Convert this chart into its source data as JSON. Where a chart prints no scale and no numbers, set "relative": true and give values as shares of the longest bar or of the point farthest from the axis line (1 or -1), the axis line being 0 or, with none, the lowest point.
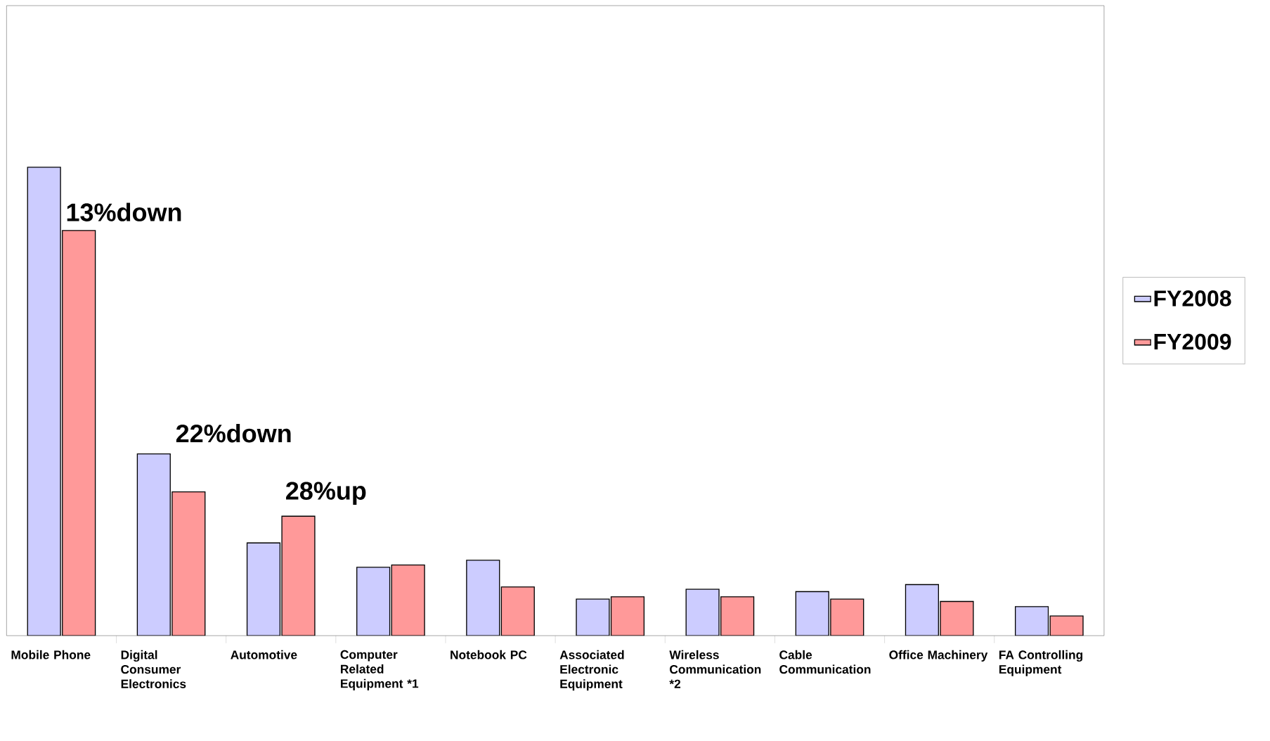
{
  "chart_data": {
    "type": "bar",
    "relative": true,
    "categories": [
      "Mobile Phone",
      "Digital Consumer Electronics",
      "Automotive",
      "Computer Related Equipment *1",
      "Notebook PC",
      "Associated Electronic Equipment",
      "Wireless Communication *2",
      "Cable Communication",
      "Office Machinery",
      "FA Controlling Equipment"
    ],
    "series": [
      {
        "name": "FY2008",
        "color": "#ccccff",
        "values": [
          1,
          0.388,
          0.198,
          0.146,
          0.161,
          0.078,
          0.099,
          0.094,
          0.109,
          0.062
        ]
      },
      {
        "name": "FY2009",
        "color": "#ff9999",
        "values": [
          0.865,
          0.307,
          0.255,
          0.151,
          0.104,
          0.083,
          0.083,
          0.078,
          0.073,
          0.042
        ]
      }
    ],
    "annotations": [
      "13%down",
      "22%down",
      "28%up"
    ],
    "legend": "right"
  }
}
